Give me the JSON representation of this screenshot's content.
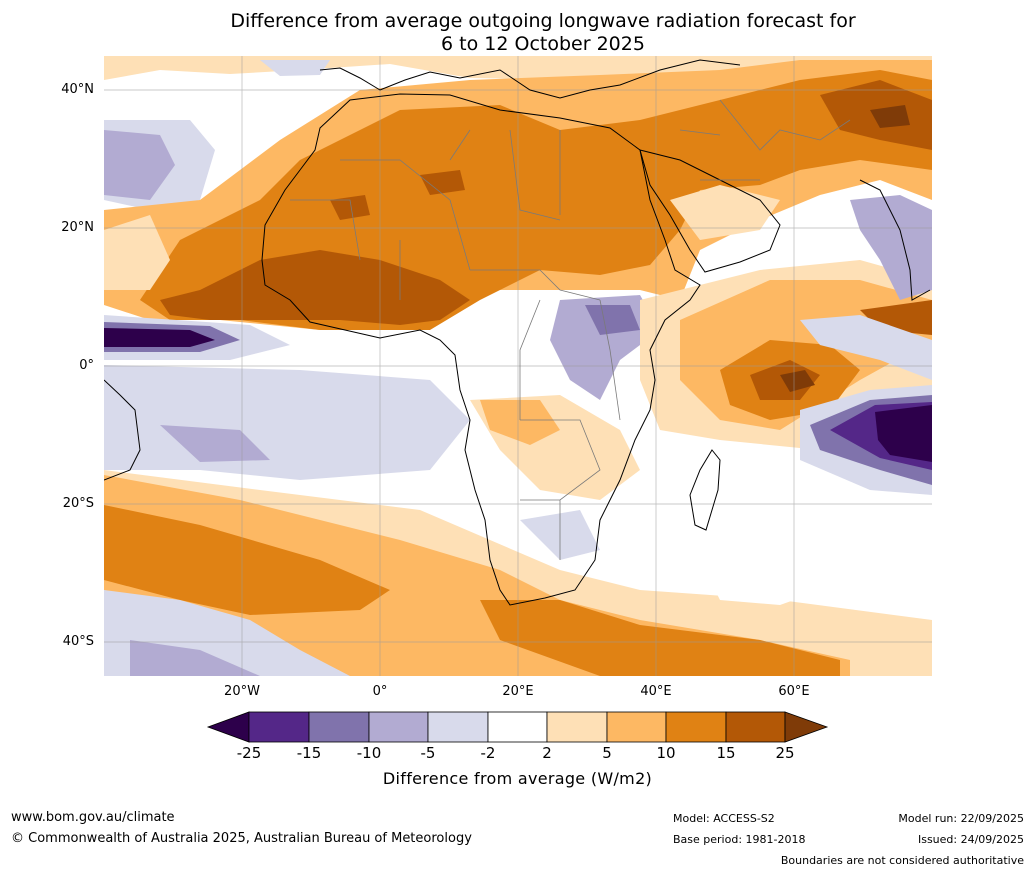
{
  "title": {
    "line1": "Difference from average outgoing longwave radiation forecast for",
    "line2": "6 to 12 October 2025"
  },
  "axes": {
    "latitude_ticks": [
      "40°N",
      "20°N",
      "0°",
      "20°S",
      "40°S"
    ],
    "longitude_ticks": [
      "20°W",
      "0°",
      "20°E",
      "40°E",
      "60°E"
    ]
  },
  "legend": {
    "title": "Difference from average (W/m2)",
    "boundaries": [
      "-25",
      "-15",
      "-10",
      "-5",
      "-2",
      "2",
      "5",
      "10",
      "15",
      "25"
    ],
    "colors": [
      "#2d004b",
      "#542788",
      "#8073ac",
      "#b2abd2",
      "#d8daeb",
      "#ffffff",
      "#fee0b6",
      "#fdb863",
      "#e08214",
      "#b35806",
      "#7f3b08"
    ]
  },
  "footer": {
    "website": "www.bom.gov.au/climate",
    "copyright": "© Commonwealth of Australia 2025, Australian Bureau of Meteorology",
    "model": "Model: ACCESS-S2",
    "base_period": "Base period: 1981-2018",
    "model_run": "Model run: 22/09/2025",
    "issued": "Issued: 24/09/2025",
    "disclaimer": "Boundaries are not considered authoritative"
  }
}
